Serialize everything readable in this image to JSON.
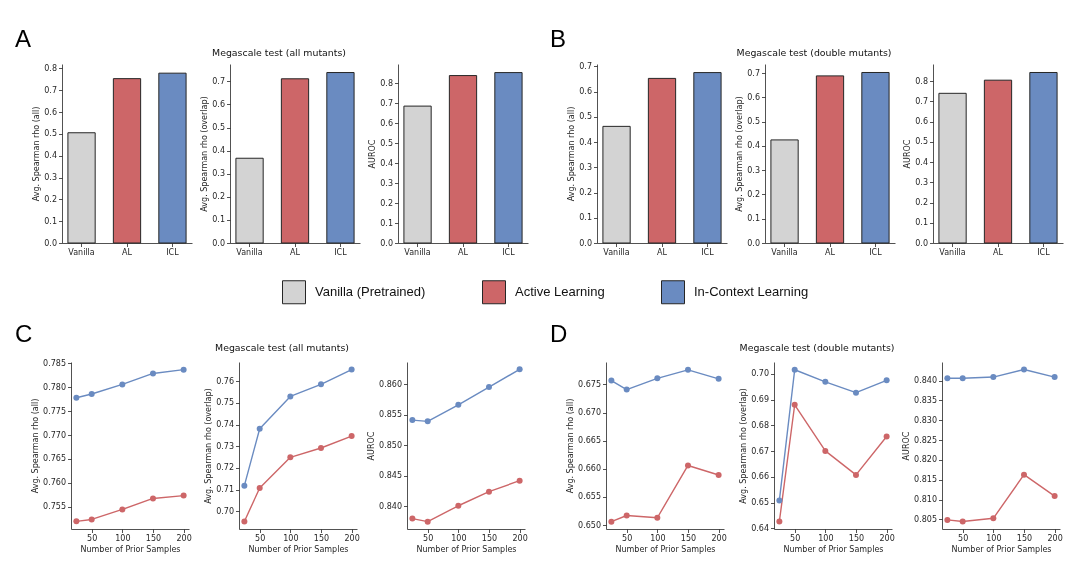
{
  "chart_data": [
    {
      "type": "bar",
      "annotations": [
        "A"
      ],
      "ylabel": "Avg. Spearman rho (all)",
      "categories": [
        "Vanilla",
        "AL",
        "ICL"
      ],
      "series": [
        {
          "name": "Vanilla (Pretrained)",
          "color": "#d3d3d3",
          "values": [
            0.505,
            null,
            null
          ]
        },
        {
          "name": "Active Learning",
          "color": "#cd6668",
          "values": [
            null,
            0.753,
            null
          ]
        },
        {
          "name": "In-Context Learning",
          "color": "#6a8bc1",
          "values": [
            null,
            null,
            0.778
          ]
        }
      ],
      "ylim": [
        0,
        0.82
      ],
      "yticks": [
        {
          "value": 0,
          "label": "0.0"
        },
        0.1,
        0.2,
        0.3,
        0.4,
        0.5,
        0.6,
        0.7,
        0.8
      ],
      "legend": "bottom"
    },
    {
      "type": "bar",
      "title": "Megascale test (all mutants)",
      "ylabel": "Avg. Spearman rho (overlap)",
      "categories": [
        "Vanilla",
        "AL",
        "ICL"
      ],
      "series": [
        {
          "name": "Vanilla (Pretrained)",
          "color": "#d3d3d3",
          "values": [
            0.367,
            null,
            null
          ]
        },
        {
          "name": "Active Learning",
          "color": "#cd6668",
          "values": [
            null,
            0.711,
            null
          ]
        },
        {
          "name": "In-Context Learning",
          "color": "#6a8bc1",
          "values": [
            null,
            null,
            0.738
          ]
        }
      ],
      "ylim": [
        0,
        0.775
      ],
      "yticks": [
        {
          "value": 0,
          "label": "0.0"
        },
        0.1,
        0.2,
        0.3,
        0.4,
        0.5,
        0.6,
        0.7
      ]
    },
    {
      "type": "bar",
      "ylabel": "AUROC",
      "categories": [
        "Vanilla",
        "AL",
        "ICL"
      ],
      "series": [
        {
          "name": "Vanilla (Pretrained)",
          "color": "#d3d3d3",
          "values": [
            0.686,
            null,
            null
          ]
        },
        {
          "name": "Active Learning",
          "color": "#cd6668",
          "values": [
            null,
            0.839,
            null
          ]
        },
        {
          "name": "In-Context Learning",
          "color": "#6a8bc1",
          "values": [
            null,
            null,
            0.854
          ]
        }
      ],
      "ylim": [
        0,
        0.897
      ],
      "yticks": [
        {
          "value": 0,
          "label": "0.0"
        },
        0.1,
        0.2,
        0.3,
        0.4,
        0.5,
        0.6,
        0.7,
        0.8
      ]
    },
    {
      "type": "bar",
      "annotations": [
        "B"
      ],
      "ylabel": "Avg. Spearman rho (all)",
      "categories": [
        "Vanilla",
        "AL",
        "ICL"
      ],
      "series": [
        {
          "name": "Vanilla (Pretrained)",
          "color": "#d3d3d3",
          "values": [
            0.462,
            null,
            null
          ]
        },
        {
          "name": "Active Learning",
          "color": "#cd6668",
          "values": [
            null,
            0.652,
            null
          ]
        },
        {
          "name": "In-Context Learning",
          "color": "#6a8bc1",
          "values": [
            null,
            null,
            0.675
          ]
        }
      ],
      "ylim": [
        0,
        0.709
      ],
      "yticks": [
        {
          "value": 0,
          "label": "0.0"
        },
        0.1,
        0.2,
        0.3,
        0.4,
        0.5,
        0.6,
        0.7
      ]
    },
    {
      "type": "bar",
      "title": "Megascale test (double mutants)",
      "ylabel": "Avg. Spearman rho (overlap)",
      "categories": [
        "Vanilla",
        "AL",
        "ICL"
      ],
      "series": [
        {
          "name": "Vanilla (Pretrained)",
          "color": "#d3d3d3",
          "values": [
            0.425,
            null,
            null
          ]
        },
        {
          "name": "Active Learning",
          "color": "#cd6668",
          "values": [
            null,
            0.689,
            null
          ]
        },
        {
          "name": "In-Context Learning",
          "color": "#6a8bc1",
          "values": [
            null,
            null,
            0.703
          ]
        }
      ],
      "ylim": [
        0,
        0.738
      ],
      "yticks": [
        {
          "value": 0,
          "label": "0.0"
        },
        0.1,
        0.2,
        0.3,
        0.4,
        0.5,
        0.6,
        0.7
      ]
    },
    {
      "type": "bar",
      "ylabel": "AUROC",
      "categories": [
        "Vanilla",
        "AL",
        "ICL"
      ],
      "series": [
        {
          "name": "Vanilla (Pretrained)",
          "color": "#d3d3d3",
          "values": [
            0.74,
            null,
            null
          ]
        },
        {
          "name": "Active Learning",
          "color": "#cd6668",
          "values": [
            null,
            0.805,
            null
          ]
        },
        {
          "name": "In-Context Learning",
          "color": "#6a8bc1",
          "values": [
            null,
            null,
            0.843
          ]
        }
      ],
      "ylim": [
        0,
        0.885
      ],
      "yticks": [
        {
          "value": 0,
          "label": "0.0"
        },
        0.1,
        0.2,
        0.3,
        0.4,
        0.5,
        0.6,
        0.7,
        0.8
      ]
    },
    {
      "type": "line",
      "annotations": [
        "C"
      ],
      "xlabel": "Number of Prior Samples",
      "ylabel": "Avg. Spearman rho (all)",
      "x": [
        25,
        50,
        100,
        150,
        200
      ],
      "series": [
        {
          "name": "Active Learning",
          "color": "#cd6668",
          "values": [
            0.7519,
            0.7523,
            0.7544,
            0.7567,
            0.7573
          ]
        },
        {
          "name": "In-Context Learning",
          "color": "#6a8bc1",
          "values": [
            0.7778,
            0.7786,
            0.7806,
            0.7829,
            0.7837
          ]
        }
      ],
      "xlim": [
        16.25,
        208.75
      ],
      "xticks": [
        50,
        100,
        150,
        200
      ],
      "ylim": [
        0.7503,
        0.7853
      ],
      "yticks": [
        0.755,
        {
          "value": 0.76,
          "label": "0.760"
        },
        0.765,
        {
          "value": 0.77,
          "label": "0.770"
        },
        0.775,
        {
          "value": 0.78,
          "label": "0.780"
        },
        0.785
      ],
      "marker": "circle",
      "line_style": "solid"
    },
    {
      "type": "line",
      "title": "Megascale test (all mutants)",
      "xlabel": "Number of Prior Samples",
      "ylabel": "Avg. Spearman rho (overlap)",
      "x": [
        25,
        50,
        100,
        150,
        200
      ],
      "series": [
        {
          "name": "Active Learning",
          "color": "#cd6668",
          "values": [
            0.6953,
            0.7107,
            0.7249,
            0.7292,
            0.7347
          ]
        },
        {
          "name": "In-Context Learning",
          "color": "#6a8bc1",
          "values": [
            0.7118,
            0.7381,
            0.753,
            0.7586,
            0.7654
          ]
        }
      ],
      "xlim": [
        16.25,
        208.75
      ],
      "xticks": [
        50,
        100,
        150,
        200
      ],
      "ylim": [
        0.6918,
        0.7689
      ],
      "yticks": [
        {
          "value": 0.7,
          "label": "0.70"
        },
        0.71,
        0.72,
        0.73,
        0.74,
        0.75,
        0.76
      ],
      "marker": "circle",
      "line_style": "solid"
    },
    {
      "type": "line",
      "xlabel": "Number of Prior Samples",
      "ylabel": "AUROC",
      "x": [
        25,
        50,
        100,
        150,
        200
      ],
      "series": [
        {
          "name": "Active Learning",
          "color": "#cd6668",
          "values": [
            0.838,
            0.8375,
            0.8401,
            0.8424,
            0.8442
          ]
        },
        {
          "name": "In-Context Learning",
          "color": "#6a8bc1",
          "values": [
            0.8541,
            0.8539,
            0.8566,
            0.8595,
            0.8624
          ]
        }
      ],
      "xlim": [
        16.25,
        208.75
      ],
      "xticks": [
        50,
        100,
        150,
        200
      ],
      "ylim": [
        0.8363,
        0.8636
      ],
      "yticks": [
        {
          "value": 0.84,
          "label": "0.840"
        },
        0.845,
        {
          "value": 0.85,
          "label": "0.850"
        },
        0.855,
        {
          "value": 0.86,
          "label": "0.860"
        }
      ],
      "marker": "circle",
      "line_style": "solid"
    },
    {
      "type": "line",
      "annotations": [
        "D"
      ],
      "xlabel": "Number of Prior Samples",
      "ylabel": "Avg. Spearman rho (all)",
      "x": [
        25,
        50,
        100,
        150,
        200
      ],
      "series": [
        {
          "name": "Active Learning",
          "color": "#cd6668",
          "values": [
            0.6506,
            0.6517,
            0.6513,
            0.6606,
            0.6589
          ]
        },
        {
          "name": "In-Context Learning",
          "color": "#6a8bc1",
          "values": [
            0.6757,
            0.6741,
            0.6761,
            0.6776,
            0.676
          ]
        }
      ],
      "xlim": [
        16.25,
        208.75
      ],
      "xticks": [
        50,
        100,
        150,
        200
      ],
      "ylim": [
        0.6493,
        0.679
      ],
      "yticks": [
        {
          "value": 0.65,
          "label": "0.650"
        },
        0.655,
        {
          "value": 0.66,
          "label": "0.660"
        },
        0.665,
        {
          "value": 0.67,
          "label": "0.670"
        },
        0.675
      ],
      "marker": "circle",
      "line_style": "solid"
    },
    {
      "type": "line",
      "title": "Megascale test (double mutants)",
      "xlabel": "Number of Prior Samples",
      "ylabel": "Avg. Spearman rho (overlap)",
      "x": [
        25,
        50,
        100,
        150,
        200
      ],
      "series": [
        {
          "name": "Active Learning",
          "color": "#cd6668",
          "values": [
            0.6427,
            0.688,
            0.6701,
            0.6608,
            0.6757
          ]
        },
        {
          "name": "In-Context Learning",
          "color": "#6a8bc1",
          "values": [
            0.6509,
            0.7016,
            0.6969,
            0.6927,
            0.6975
          ]
        }
      ],
      "xlim": [
        16.25,
        208.75
      ],
      "xticks": [
        50,
        100,
        150,
        200
      ],
      "ylim": [
        0.6398,
        0.7046
      ],
      "yticks": [
        0.64,
        0.65,
        0.66,
        0.67,
        0.68,
        0.69,
        {
          "value": 0.7,
          "label": "0.70"
        }
      ],
      "marker": "circle",
      "line_style": "solid"
    },
    {
      "type": "line",
      "xlabel": "Number of Prior Samples",
      "ylabel": "AUROC",
      "x": [
        25,
        50,
        100,
        150,
        200
      ],
      "series": [
        {
          "name": "Active Learning",
          "color": "#cd6668",
          "values": [
            0.8049,
            0.8045,
            0.8053,
            0.8163,
            0.8109
          ]
        },
        {
          "name": "In-Context Learning",
          "color": "#6a8bc1",
          "values": [
            0.8406,
            0.8406,
            0.8409,
            0.8428,
            0.8409
          ]
        }
      ],
      "xlim": [
        16.25,
        208.75
      ],
      "xticks": [
        50,
        100,
        150,
        200
      ],
      "ylim": [
        0.8026,
        0.8447
      ],
      "yticks": [
        0.805,
        {
          "value": 0.81,
          "label": "0.810"
        },
        0.815,
        {
          "value": 0.82,
          "label": "0.820"
        },
        0.825,
        {
          "value": 0.83,
          "label": "0.830"
        },
        0.835,
        {
          "value": 0.84,
          "label": "0.840"
        }
      ],
      "marker": "circle",
      "line_style": "solid"
    }
  ]
}
